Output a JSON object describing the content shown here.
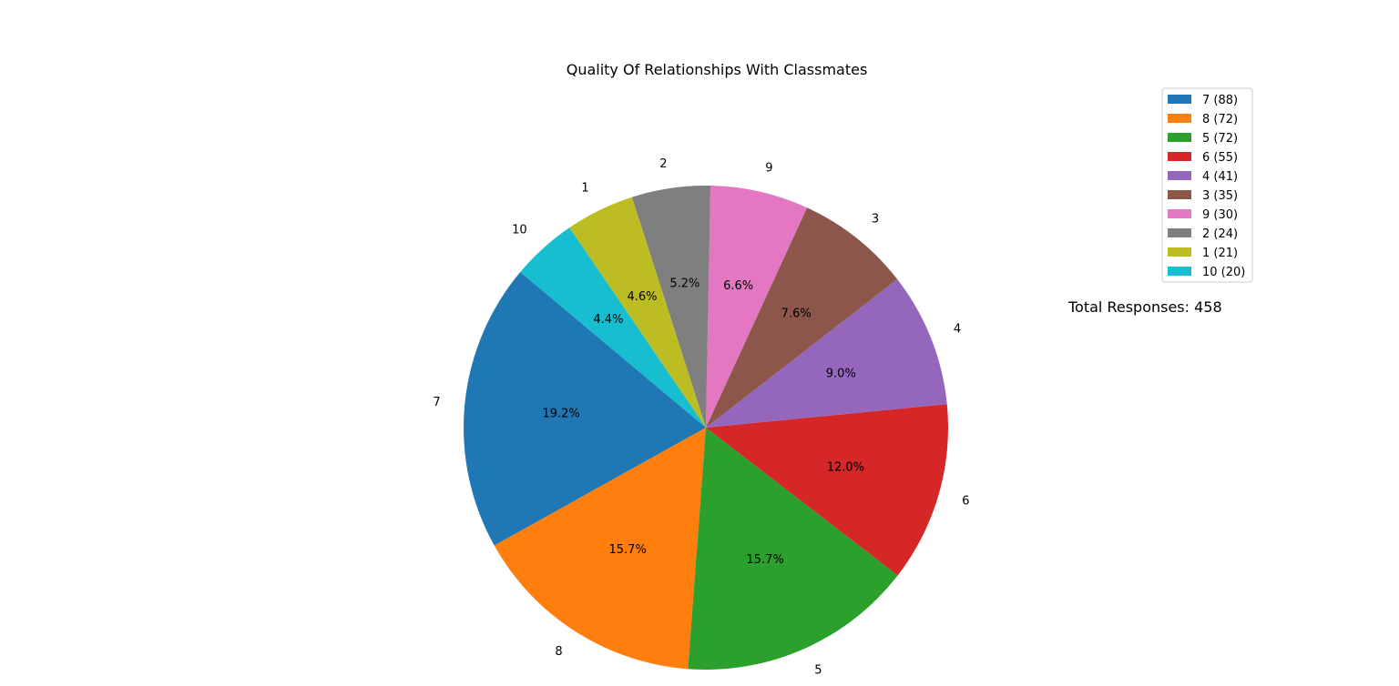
{
  "chart_data": {
    "type": "pie",
    "title": "Quality Of Relationships With Classmates",
    "categories": [
      "7",
      "8",
      "5",
      "6",
      "4",
      "3",
      "9",
      "2",
      "1",
      "10"
    ],
    "values": [
      88,
      72,
      72,
      55,
      41,
      35,
      30,
      24,
      21,
      20
    ],
    "percent_labels": [
      "19.2%",
      "15.7%",
      "15.7%",
      "12.0%",
      "9.0%",
      "7.6%",
      "6.6%",
      "5.2%",
      "4.6%",
      "4.4%"
    ],
    "legend_entries": [
      "7 (88)",
      "8 (72)",
      "5 (72)",
      "6 (55)",
      "4 (41)",
      "3 (35)",
      "9 (30)",
      "2 (24)",
      "1 (21)",
      "10 (20)"
    ],
    "colors": [
      "#1f77b4",
      "#ff7f0e",
      "#2ca02c",
      "#d62728",
      "#9467bd",
      "#8c564b",
      "#e377c2",
      "#7f7f7f",
      "#bcbd22",
      "#17becf"
    ],
    "legend_placement": "upper-right",
    "start_angle_deg": 140,
    "direction": "counterclockwise",
    "annotation": "Total Responses: 458"
  }
}
